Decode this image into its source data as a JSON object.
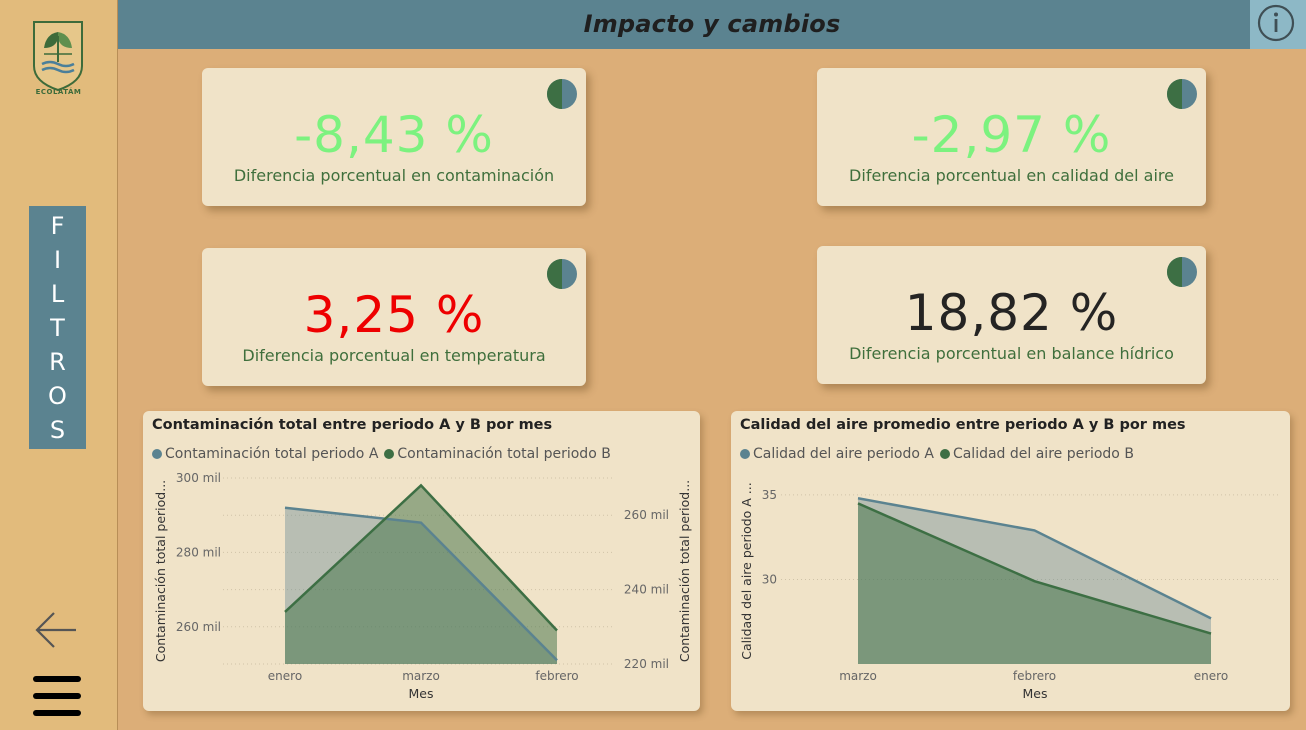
{
  "header": {
    "title": "Impacto y cambios",
    "info_icon": "info-icon"
  },
  "sidebar": {
    "logo_text": "ECOLATÁM",
    "filters_letters": [
      "F",
      "I",
      "L",
      "T",
      "R",
      "O",
      "S"
    ],
    "back_icon": "arrow-left-icon",
    "menu_icon": "hamburger-icon"
  },
  "colors": {
    "series_a": "#5b8390",
    "series_b": "#3d6f44",
    "negative_good": "#7cf27f",
    "positive_bad": "#ee0000",
    "neutral": "#252423"
  },
  "cards": [
    {
      "value": "-8,43 %",
      "label": "Diferencia porcentual en contaminación"
    },
    {
      "value": "-2,97 %",
      "label": "Diferencia porcentual en calidad del aire"
    },
    {
      "value": "3,25 %",
      "label": "Diferencia porcentual en temperatura"
    },
    {
      "value": "18,82 %",
      "label": "Diferencia porcentual en balance hídrico"
    }
  ],
  "chart_data": [
    {
      "type": "area",
      "title": "Contaminación total entre periodo A y B por mes",
      "xlabel": "Mes",
      "ylabel": "Contaminación total period...",
      "y2label": "Contaminación total period...",
      "categories": [
        "enero",
        "marzo",
        "febrero"
      ],
      "series": [
        {
          "name": "Contaminación total periodo A",
          "axis": "left",
          "values": [
            292000,
            288000,
            251000
          ]
        },
        {
          "name": "Contaminación total periodo B",
          "axis": "right",
          "values": [
            234000,
            268000,
            229000
          ]
        }
      ],
      "ylim": [
        250000,
        300000
      ],
      "y2lim": [
        220000,
        270000
      ],
      "yticks": [
        "300 mil",
        "280 mil",
        "260 mil"
      ],
      "y2ticks": [
        "260 mil",
        "240 mil",
        "220 mil"
      ],
      "grid": true,
      "legend": "top-left"
    },
    {
      "type": "area",
      "title": "Calidad del aire promedio entre periodo A y B por mes",
      "xlabel": "Mes",
      "ylabel": "Calidad del aire periodo A ...",
      "categories": [
        "marzo",
        "febrero",
        "enero"
      ],
      "series": [
        {
          "name": "Calidad del aire periodo A",
          "values": [
            34.8,
            32.9,
            27.7
          ]
        },
        {
          "name": "Calidad del aire periodo B",
          "values": [
            34.5,
            29.9,
            26.8
          ]
        }
      ],
      "ylim": [
        25,
        36
      ],
      "yticks": [
        "35",
        "30"
      ],
      "grid": true,
      "legend": "top-left"
    }
  ]
}
